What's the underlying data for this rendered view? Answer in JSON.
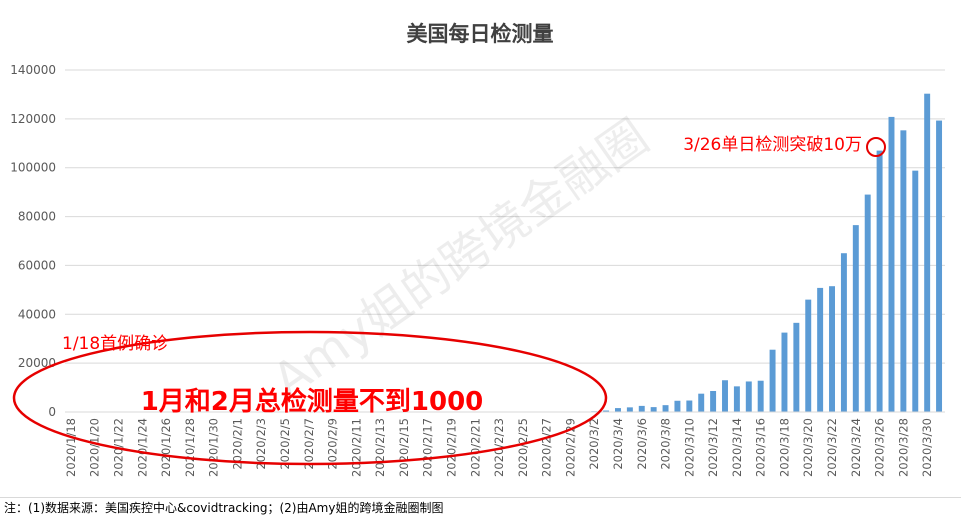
{
  "chart_data": {
    "type": "bar",
    "title": "美国每日检测量",
    "xlabel": "",
    "ylabel": "",
    "ylim": [
      0,
      140000
    ],
    "yticks": [
      "0",
      "20000",
      "40000",
      "60000",
      "80000",
      "100000",
      "120000",
      "140000"
    ],
    "grid": true,
    "bar_color": "#5b9bd5",
    "categories": [
      "2020/1/18",
      "2020/1/19",
      "2020/1/20",
      "2020/1/21",
      "2020/1/22",
      "2020/1/23",
      "2020/1/24",
      "2020/1/25",
      "2020/1/26",
      "2020/1/27",
      "2020/1/28",
      "2020/1/29",
      "2020/1/30",
      "2020/1/31",
      "2020/2/1",
      "2020/2/2",
      "2020/2/3",
      "2020/2/4",
      "2020/2/5",
      "2020/2/6",
      "2020/2/7",
      "2020/2/8",
      "2020/2/9",
      "2020/2/10",
      "2020/2/11",
      "2020/2/12",
      "2020/2/13",
      "2020/2/14",
      "2020/2/15",
      "2020/2/16",
      "2020/2/17",
      "2020/2/18",
      "2020/2/19",
      "2020/2/20",
      "2020/2/21",
      "2020/2/22",
      "2020/2/23",
      "2020/2/24",
      "2020/2/25",
      "2020/2/26",
      "2020/2/27",
      "2020/2/28",
      "2020/2/29",
      "2020/3/1",
      "2020/3/2",
      "2020/3/3",
      "2020/3/4",
      "2020/3/5",
      "2020/3/6",
      "2020/3/7",
      "2020/3/8",
      "2020/3/9",
      "2020/3/10",
      "2020/3/11",
      "2020/3/12",
      "2020/3/13",
      "2020/3/14",
      "2020/3/15",
      "2020/3/16",
      "2020/3/17",
      "2020/3/18",
      "2020/3/19",
      "2020/3/20",
      "2020/3/21",
      "2020/3/22",
      "2020/3/23",
      "2020/3/24",
      "2020/3/25",
      "2020/3/26",
      "2020/3/27",
      "2020/3/28",
      "2020/3/29",
      "2020/3/30",
      "2020/3/31"
    ],
    "visible_tick_labels": [
      "2020/1/18",
      "2020/1/20",
      "2020/1/22",
      "2020/1/24",
      "2020/1/26",
      "2020/1/28",
      "2020/1/30",
      "2020/2/1",
      "2020/2/3",
      "2020/2/5",
      "2020/2/7",
      "2020/2/9",
      "2020/2/11",
      "2020/2/13",
      "2020/2/15",
      "2020/2/17",
      "2020/2/19",
      "2020/2/21",
      "2020/2/23",
      "2020/2/25",
      "2020/2/27",
      "2020/2/29",
      "2020/3/2",
      "2020/3/4",
      "2020/3/6",
      "2020/3/8",
      "2020/3/10",
      "2020/3/12",
      "2020/3/14",
      "2020/3/16",
      "2020/3/18",
      "2020/3/20",
      "2020/3/22",
      "2020/3/24",
      "2020/3/26",
      "2020/3/28",
      "2020/3/30"
    ],
    "values": [
      0,
      0,
      0,
      0,
      0,
      0,
      0,
      0,
      0,
      0,
      0,
      0,
      0,
      0,
      0,
      0,
      0,
      0,
      0,
      0,
      0,
      0,
      0,
      0,
      0,
      0,
      0,
      0,
      0,
      0,
      0,
      0,
      0,
      0,
      0,
      0,
      0,
      0,
      0,
      0,
      0,
      0,
      0,
      100,
      300,
      600,
      1600,
      1900,
      2500,
      2000,
      2800,
      4600,
      4700,
      7500,
      8600,
      13000,
      10500,
      12500,
      12800,
      25500,
      32500,
      36500,
      46000,
      50800,
      51500,
      65000,
      76500,
      89000,
      107000,
      120800,
      115300,
      98800,
      130300,
      119300
    ],
    "annotations": [
      {
        "text": "3/26单日检测突破10万",
        "color": "#ff0000"
      },
      {
        "text": "1/18首例确诊",
        "color": "#ff0000"
      },
      {
        "text": "1月和2月总检测量不到1000",
        "color": "#ff0000"
      }
    ],
    "watermark": "Amy姐的跨境金融圈"
  },
  "footer": {
    "source_note": "注：(1)数据来源：美国疾控中心&covidtracking；(2)由Amy姐的跨境金融圈制图"
  }
}
